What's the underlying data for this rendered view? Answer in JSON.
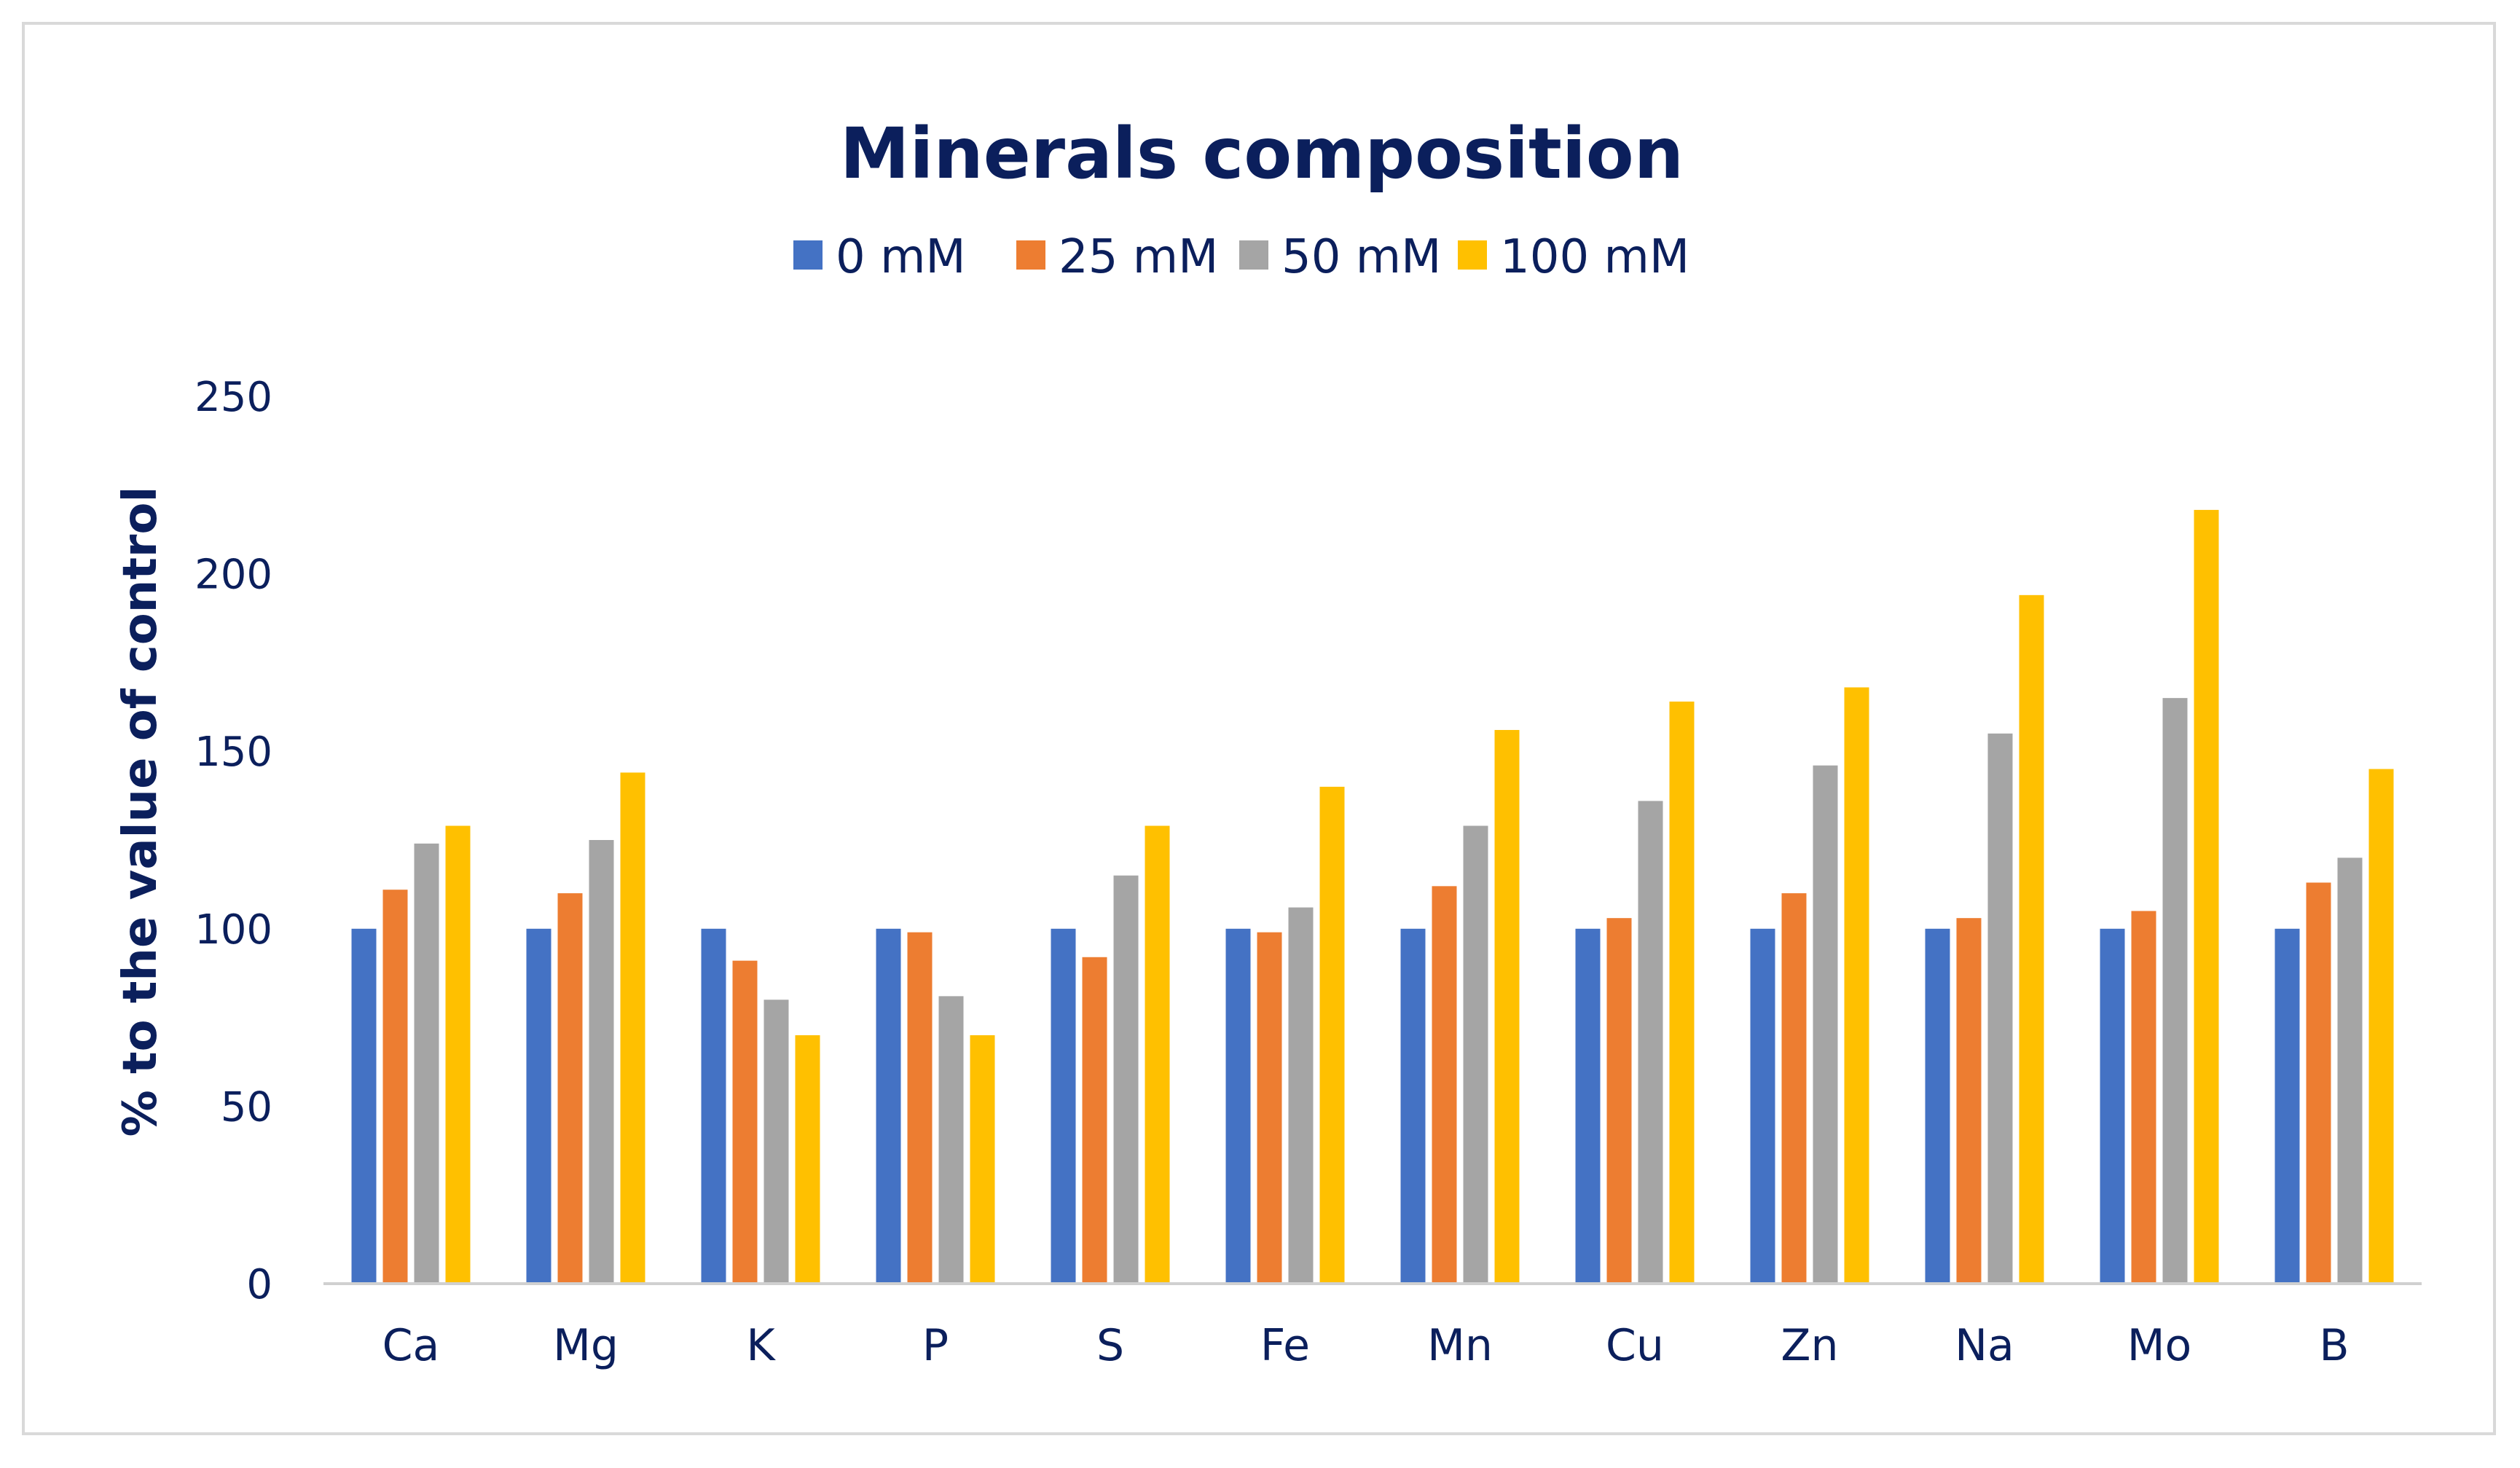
{
  "chart_data": {
    "type": "bar",
    "title": "Minerals composition",
    "xlabel": "",
    "ylabel": "% to the value of control",
    "ylim": [
      0,
      250
    ],
    "yticks": [
      "0",
      "50",
      "100",
      "150",
      "200",
      "250"
    ],
    "grid": false,
    "legend_position": "top",
    "categories": [
      "Ca",
      "Mg",
      "K",
      "P",
      "S",
      "Fe",
      "Mn",
      "Cu",
      "Zn",
      "Na",
      "Mo",
      "B"
    ],
    "series": [
      {
        "name": "0 mM",
        "color": "#4472c4",
        "values": [
          100,
          100,
          100,
          100,
          100,
          100,
          100,
          100,
          100,
          100,
          100,
          100
        ]
      },
      {
        "name": "25 mM",
        "color": "#ed7d31",
        "values": [
          111,
          110,
          91,
          99,
          92,
          99,
          112,
          103,
          110,
          103,
          105,
          113
        ]
      },
      {
        "name": "50 mM",
        "color": "#a5a5a5",
        "values": [
          124,
          125,
          80,
          81,
          115,
          106,
          129,
          136,
          146,
          155,
          165,
          120
        ]
      },
      {
        "name": "100 mM",
        "color": "#ffc000",
        "values": [
          129,
          144,
          70,
          70,
          129,
          140,
          156,
          164,
          168,
          194,
          218,
          145
        ]
      }
    ]
  }
}
